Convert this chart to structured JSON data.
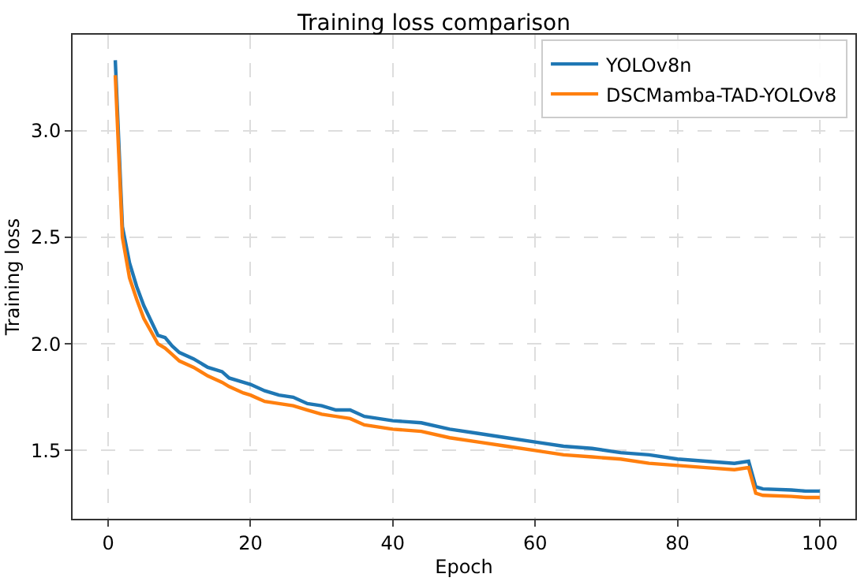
{
  "chart_data": {
    "type": "line",
    "title": "Training loss comparison",
    "xlabel": "Epoch",
    "ylabel": "Training loss",
    "xlim": [
      -5,
      105
    ],
    "xticks": [
      0,
      20,
      40,
      60,
      80,
      100
    ],
    "ylim": [
      1.18,
      3.45
    ],
    "yticks": [
      {
        "value": 1.5,
        "label": "1.5"
      },
      {
        "value": 2.0,
        "label": "2.0"
      },
      {
        "value": 2.5,
        "label": "2.5"
      },
      {
        "value": 3.0,
        "label": "3.0"
      }
    ],
    "grid": true,
    "legend": "top right",
    "marker": "none",
    "line_style": "solid",
    "x": [
      1,
      2,
      3,
      4,
      5,
      6,
      7,
      8,
      9,
      10,
      12,
      14,
      16,
      17,
      19,
      20,
      22,
      24,
      26,
      28,
      30,
      32,
      34,
      36,
      40,
      44,
      48,
      52,
      56,
      60,
      64,
      68,
      72,
      76,
      80,
      84,
      88,
      90,
      91,
      92,
      96,
      98,
      100
    ],
    "series": [
      {
        "name": "YOLOv8n",
        "color": "#1f77b4",
        "values": [
          3.33,
          2.55,
          2.38,
          2.27,
          2.18,
          2.11,
          2.04,
          2.03,
          1.99,
          1.96,
          1.93,
          1.89,
          1.87,
          1.84,
          1.82,
          1.81,
          1.78,
          1.76,
          1.75,
          1.72,
          1.71,
          1.69,
          1.69,
          1.66,
          1.64,
          1.63,
          1.6,
          1.58,
          1.56,
          1.54,
          1.52,
          1.51,
          1.49,
          1.48,
          1.46,
          1.45,
          1.44,
          1.45,
          1.33,
          1.32,
          1.315,
          1.31,
          1.31
        ]
      },
      {
        "name": "DSCMamba-TAD-YOLOv8",
        "color": "#ff7f0e",
        "values": [
          3.26,
          2.5,
          2.31,
          2.21,
          2.12,
          2.06,
          2.0,
          1.98,
          1.95,
          1.92,
          1.89,
          1.85,
          1.82,
          1.8,
          1.77,
          1.76,
          1.73,
          1.72,
          1.71,
          1.69,
          1.67,
          1.66,
          1.65,
          1.62,
          1.6,
          1.59,
          1.56,
          1.54,
          1.52,
          1.5,
          1.48,
          1.47,
          1.46,
          1.44,
          1.43,
          1.42,
          1.41,
          1.42,
          1.3,
          1.29,
          1.285,
          1.28,
          1.28
        ]
      }
    ]
  }
}
